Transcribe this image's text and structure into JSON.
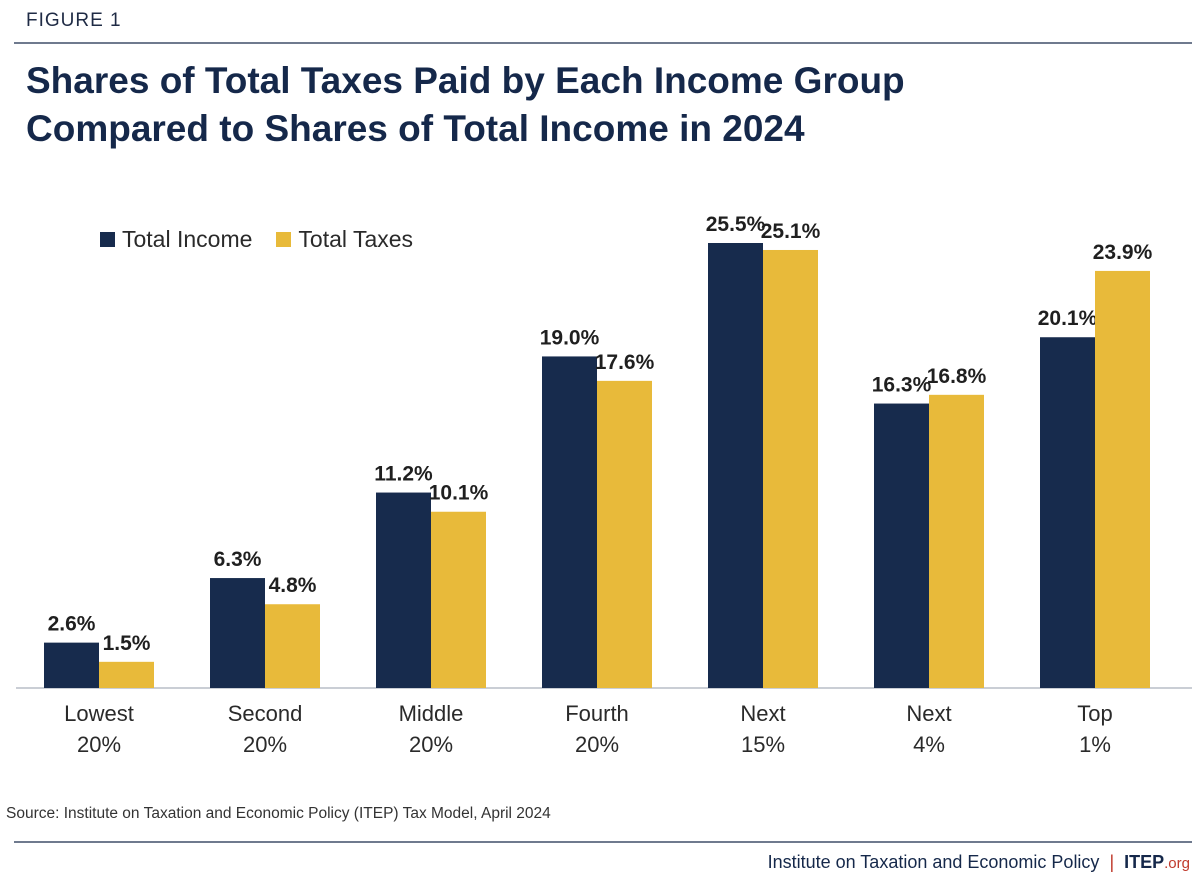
{
  "figure_label": "FIGURE 1",
  "title_line1": "Shares of Total Taxes Paid by Each Income Group",
  "title_line2": "Compared to Shares of Total Income in 2024",
  "source": "Source: Institute on Taxation and Economic Policy (ITEP) Tax Model, April 2024",
  "footer": {
    "org_name": "Institute on Taxation and Economic Policy",
    "separator": "|",
    "brand": "ITEP",
    "brand_suffix": ".org"
  },
  "colors": {
    "income": "#172b4d",
    "taxes": "#e8ba3a",
    "label": "#1f1f1f"
  },
  "chart_data": {
    "type": "bar",
    "title": "Shares of Total Taxes Paid by Each Income Group Compared to Shares of Total Income in 2024",
    "categories": [
      [
        "Lowest",
        "20%"
      ],
      [
        "Second",
        "20%"
      ],
      [
        "Middle",
        "20%"
      ],
      [
        "Fourth",
        "20%"
      ],
      [
        "Next",
        "15%"
      ],
      [
        "Next",
        "4%"
      ],
      [
        "Top",
        "1%"
      ]
    ],
    "series": [
      {
        "name": "Total Income",
        "values": [
          2.6,
          6.3,
          11.2,
          19.0,
          25.5,
          16.3,
          20.1
        ],
        "labels": [
          "2.6%",
          "6.3%",
          "11.2%",
          "19.0%",
          "25.5%",
          "16.3%",
          "20.1%"
        ]
      },
      {
        "name": "Total Taxes",
        "values": [
          1.5,
          4.8,
          10.1,
          17.6,
          25.1,
          16.8,
          23.9
        ],
        "labels": [
          "1.5%",
          "4.8%",
          "10.1%",
          "17.6%",
          "25.1%",
          "16.8%",
          "23.9%"
        ]
      }
    ],
    "xlabel": "",
    "ylabel": "",
    "ylim": [
      0,
      25.5
    ],
    "grid": false,
    "legend": "top-left"
  }
}
